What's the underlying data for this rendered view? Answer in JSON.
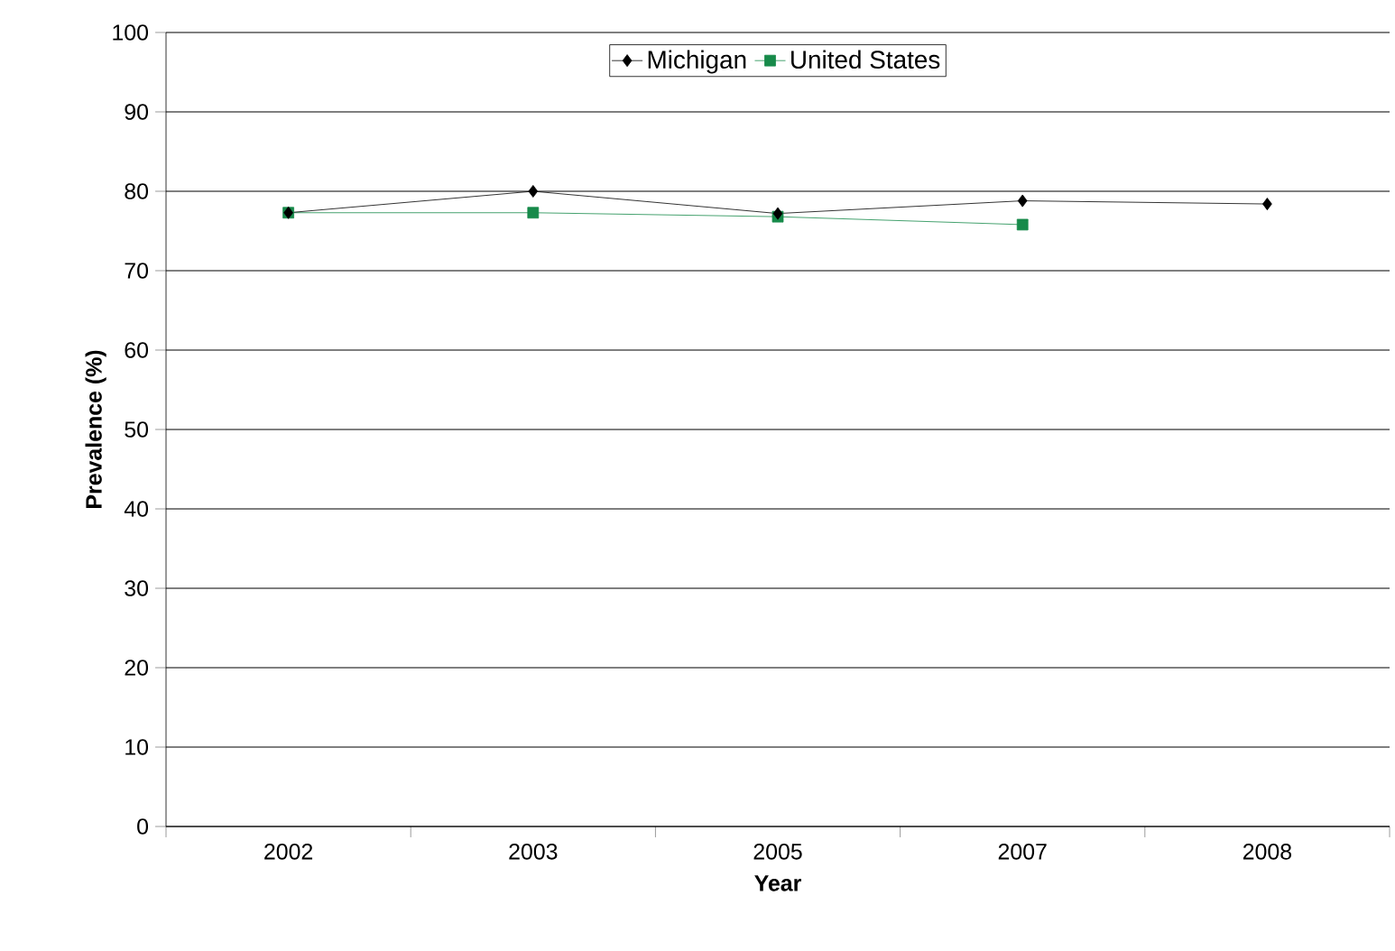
{
  "chart_data": {
    "type": "line",
    "xlabel": "Year",
    "ylabel": "Prevalence (%)",
    "categories": [
      "2002",
      "2003",
      "2005",
      "2007",
      "2008"
    ],
    "series": [
      {
        "name": "Michigan",
        "color": "#000000",
        "marker": "diamond",
        "values": [
          77.3,
          80.0,
          77.2,
          78.8,
          78.4
        ]
      },
      {
        "name": "United States",
        "color": "#178a4a",
        "marker": "square",
        "values": [
          77.3,
          77.3,
          76.8,
          75.8,
          null
        ]
      }
    ],
    "ylim": [
      0,
      100
    ],
    "yticks": [
      0,
      10,
      20,
      30,
      40,
      50,
      60,
      70,
      80,
      90,
      100
    ],
    "grid": "y",
    "legend": "top",
    "line_style": "solid"
  }
}
